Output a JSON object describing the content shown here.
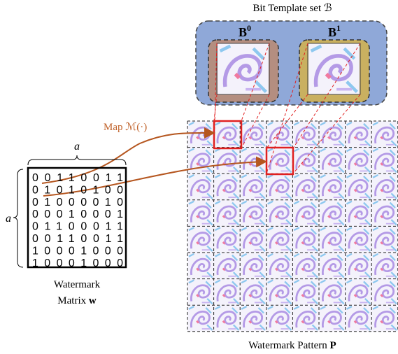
{
  "template_set": {
    "title": "Bit Template set ℬ",
    "templates": [
      {
        "label": "B",
        "superscript": "0"
      },
      {
        "label": "B",
        "superscript": "1"
      }
    ]
  },
  "map_label": "Map ℳ(·)",
  "matrix": {
    "size_label_top": "a",
    "size_label_left": "a",
    "rows": [
      "00110011",
      "01010100",
      "01000010",
      "00010001",
      "01100011",
      "00110011",
      "10001000",
      "10001000"
    ],
    "caption_line1": "Watermark",
    "caption_line2_text": "Matrix",
    "caption_line2_symbol": "w"
  },
  "pattern": {
    "caption_text": "Watermark Pattern",
    "caption_symbol": "P"
  }
}
